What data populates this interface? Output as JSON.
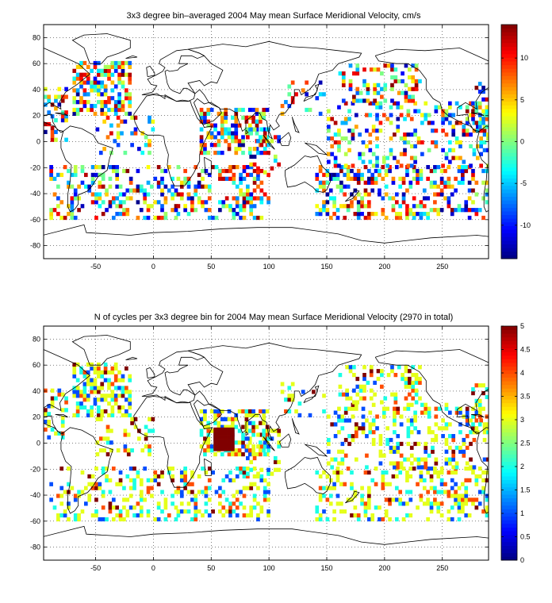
{
  "chart_data": [
    {
      "type": "heatmap",
      "title": "3x3 degree bin–averaged 2004 May mean Surface Meridional Velocity, cm/s",
      "xlim": [
        -95,
        290
      ],
      "ylim": [
        -90,
        90
      ],
      "xticks": [
        -50,
        0,
        50,
        100,
        150,
        200,
        250
      ],
      "yticks": [
        -80,
        -60,
        -40,
        -20,
        0,
        20,
        40,
        60,
        80
      ],
      "grid": true,
      "bin_size_deg": 3,
      "colorbar": {
        "min": -14,
        "max": 14,
        "ticks": [
          -10,
          -5,
          0,
          5,
          10
        ],
        "colormap": "jet",
        "placement": "right"
      },
      "regions": [
        {
          "x_range": [
            -70,
            -20
          ],
          "y_range": [
            20,
            60
          ],
          "density": 0.55
        },
        {
          "x_range": [
            -95,
            -75
          ],
          "y_range": [
            0,
            40
          ],
          "density": 0.35
        },
        {
          "x_range": [
            -50,
            0
          ],
          "y_range": [
            -10,
            20
          ],
          "density": 0.3
        },
        {
          "x_range": [
            -90,
            20
          ],
          "y_range": [
            -60,
            -20
          ],
          "density": 0.3
        },
        {
          "x_range": [
            20,
            100
          ],
          "y_range": [
            -60,
            -20
          ],
          "density": 0.35
        },
        {
          "x_range": [
            40,
            100
          ],
          "y_range": [
            -10,
            25
          ],
          "density": 0.55
        },
        {
          "x_range": [
            80,
            110
          ],
          "y_range": [
            -25,
            10
          ],
          "density": 0.3
        },
        {
          "x_range": [
            140,
            290
          ],
          "y_range": [
            -60,
            -20
          ],
          "density": 0.35
        },
        {
          "x_range": [
            150,
            290
          ],
          "y_range": [
            -20,
            30
          ],
          "density": 0.3
        },
        {
          "x_range": [
            160,
            230
          ],
          "y_range": [
            30,
            60
          ],
          "density": 0.35
        },
        {
          "x_range": [
            110,
            150
          ],
          "y_range": [
            20,
            45
          ],
          "density": 0.15
        },
        {
          "x_range": [
            275,
            290
          ],
          "y_range": [
            10,
            45
          ],
          "density": 0.4
        }
      ],
      "value_range": [
        -14,
        14
      ]
    },
    {
      "type": "heatmap",
      "title": "N of cycles per 3x3 degree bin for 2004 May mean Surface Meridional Velocity (2970 in total)",
      "xlim": [
        -95,
        290
      ],
      "ylim": [
        -90,
        90
      ],
      "xticks": [
        -50,
        0,
        50,
        100,
        150,
        200,
        250
      ],
      "yticks": [
        -80,
        -60,
        -40,
        -20,
        0,
        20,
        40,
        60,
        80
      ],
      "grid": true,
      "bin_size_deg": 3,
      "total_cycles": 2970,
      "colorbar": {
        "min": 0,
        "max": 5,
        "ticks": [
          0,
          0.5,
          1,
          1.5,
          2,
          2.5,
          3,
          3.5,
          4,
          4.5,
          5
        ],
        "colormap": "jet",
        "placement": "right"
      },
      "regions": [
        {
          "x_range": [
            -70,
            -20
          ],
          "y_range": [
            20,
            60
          ],
          "density": 0.55
        },
        {
          "x_range": [
            -95,
            -75
          ],
          "y_range": [
            0,
            40
          ],
          "density": 0.35
        },
        {
          "x_range": [
            -50,
            0
          ],
          "y_range": [
            -10,
            20
          ],
          "density": 0.3
        },
        {
          "x_range": [
            -90,
            20
          ],
          "y_range": [
            -60,
            -20
          ],
          "density": 0.3
        },
        {
          "x_range": [
            20,
            100
          ],
          "y_range": [
            -60,
            -20
          ],
          "density": 0.35
        },
        {
          "x_range": [
            40,
            100
          ],
          "y_range": [
            -10,
            25
          ],
          "density": 0.55
        },
        {
          "x_range": [
            80,
            110
          ],
          "y_range": [
            -25,
            10
          ],
          "density": 0.3
        },
        {
          "x_range": [
            140,
            290
          ],
          "y_range": [
            -60,
            -20
          ],
          "density": 0.35
        },
        {
          "x_range": [
            150,
            290
          ],
          "y_range": [
            -20,
            30
          ],
          "density": 0.3
        },
        {
          "x_range": [
            160,
            230
          ],
          "y_range": [
            30,
            60
          ],
          "density": 0.35
        },
        {
          "x_range": [
            110,
            150
          ],
          "y_range": [
            20,
            45
          ],
          "density": 0.15
        },
        {
          "x_range": [
            275,
            290
          ],
          "y_range": [
            10,
            45
          ],
          "density": 0.4
        }
      ],
      "value_range": [
        0,
        5
      ],
      "hotspot": {
        "x_range": [
          52,
          68
        ],
        "y_range": [
          -6,
          12
        ],
        "value": 5
      }
    }
  ]
}
